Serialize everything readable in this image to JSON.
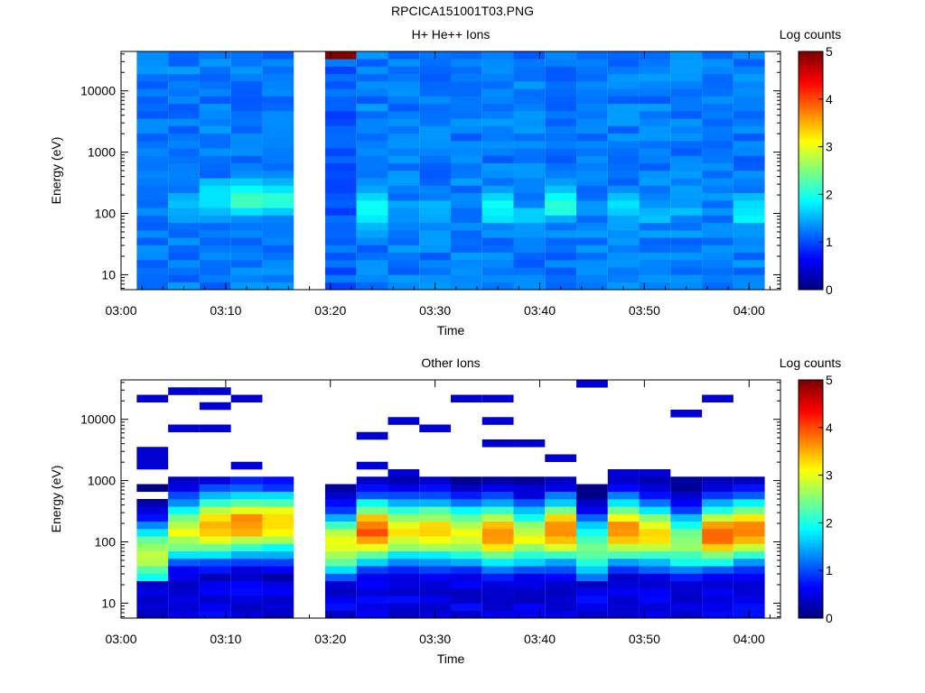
{
  "figure_title": "RPCICA151001T03.PNG",
  "chart_data": [
    {
      "type": "heatmap",
      "title": "H+ He++ Ions",
      "xlabel": "Time",
      "ylabel": "Energy (eV)",
      "x_ticks": [
        "03:00",
        "03:10",
        "03:20",
        "03:30",
        "03:40",
        "03:50",
        "04:00"
      ],
      "y_ticks": [
        "10",
        "100",
        "1000",
        "10000"
      ],
      "y_scale": "log",
      "y_range_eV": [
        5.7,
        44000
      ],
      "x_range": [
        "03:00",
        "04:03"
      ],
      "colorbar": {
        "label": "Log counts",
        "min": 0,
        "max": 5,
        "ticks": [
          "0",
          "1",
          "2",
          "3",
          "4",
          "5"
        ],
        "colormap": "jet"
      },
      "time_bins": [
        "03:03",
        "03:06",
        "03:09",
        "03:12",
        "03:15",
        "03:18",
        "03:21",
        "03:24",
        "03:27",
        "03:30",
        "03:33",
        "03:36",
        "03:39",
        "03:42",
        "03:45",
        "03:48",
        "03:51",
        "03:54",
        "03:57",
        "04:00"
      ],
      "data_gaps": [
        "03:18"
      ],
      "band_peak_log_counts": [
        1.3,
        1.5,
        2.0,
        2.3,
        2.2,
        null,
        5.0,
        2.1,
        1.4,
        1.5,
        1.4,
        1.9,
        1.7,
        2.2,
        1.3,
        1.9,
        1.6,
        1.5,
        1.3,
        1.9
      ],
      "band_peak_energy_eV": [
        150,
        150,
        170,
        170,
        170,
        null,
        40000,
        130,
        120,
        110,
        110,
        120,
        80,
        150,
        120,
        120,
        110,
        100,
        100,
        110
      ]
    },
    {
      "type": "heatmap",
      "title": "Other Ions",
      "xlabel": "Time",
      "ylabel": "Energy (eV)",
      "x_ticks": [
        "03:00",
        "03:10",
        "03:20",
        "03:30",
        "03:40",
        "03:50",
        "04:00"
      ],
      "y_ticks": [
        "10",
        "100",
        "1000",
        "10000"
      ],
      "y_scale": "log",
      "y_range_eV": [
        5.7,
        44000
      ],
      "x_range": [
        "03:00",
        "04:03"
      ],
      "colorbar": {
        "label": "Log counts",
        "min": 0,
        "max": 5,
        "ticks": [
          "0",
          "1",
          "2",
          "3",
          "4",
          "5"
        ],
        "colormap": "jet"
      },
      "time_bins": [
        "03:03",
        "03:06",
        "03:09",
        "03:12",
        "03:15",
        "03:18",
        "03:21",
        "03:24",
        "03:27",
        "03:30",
        "03:33",
        "03:36",
        "03:39",
        "03:42",
        "03:45",
        "03:48",
        "03:51",
        "03:54",
        "03:57",
        "04:00"
      ],
      "data_gaps": [
        "03:18"
      ],
      "band_peak_log_counts": [
        2.9,
        3.0,
        3.6,
        3.7,
        3.4,
        null,
        3.1,
        3.9,
        3.2,
        3.3,
        3.1,
        3.7,
        3.0,
        3.8,
        2.5,
        3.7,
        3.2,
        2.7,
        3.8,
        3.7
      ],
      "band_peak_energy_eV": [
        60,
        150,
        180,
        200,
        200,
        null,
        90,
        150,
        150,
        150,
        130,
        130,
        120,
        150,
        80,
        150,
        130,
        100,
        130,
        150
      ]
    }
  ]
}
